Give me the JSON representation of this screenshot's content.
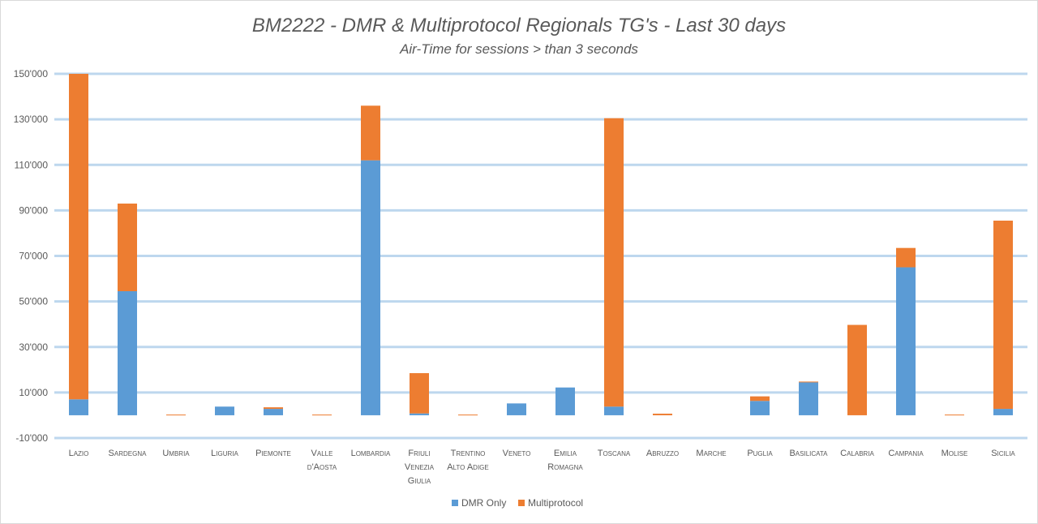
{
  "chart_data": {
    "type": "bar",
    "stacked": true,
    "title": "BM2222 - DMR & Multiprotocol Regionals TG's - Last 30 days",
    "subtitle": "Air-Time for sessions > than 3 seconds",
    "categories": [
      "Lazio",
      "Sardegna",
      "Umbria",
      "Liguria",
      "Piemonte",
      "Valle d'Aosta",
      "Lombardia",
      "Friuli Venezia Giulia",
      "Trentino Alto Adige",
      "Veneto",
      "Emilia Romagna",
      "Toscana",
      "Abruzzo",
      "Marche",
      "Puglia",
      "Basilicata",
      "Calabria",
      "Campania",
      "Molise",
      "Sicilia"
    ],
    "category_label_lines": [
      [
        "Lazio"
      ],
      [
        "Sardegna"
      ],
      [
        "Umbria"
      ],
      [
        "Liguria"
      ],
      [
        "Piemonte"
      ],
      [
        "Valle",
        "d'Aosta"
      ],
      [
        "Lombardia"
      ],
      [
        "Friuli",
        "Venezia",
        "Giulia"
      ],
      [
        "Trentino",
        "Alto Adige"
      ],
      [
        "Veneto"
      ],
      [
        "Emilia",
        "Romagna"
      ],
      [
        "Toscana"
      ],
      [
        "Abruzzo"
      ],
      [
        "Marche"
      ],
      [
        "Puglia"
      ],
      [
        "Basilicata"
      ],
      [
        "Calabria"
      ],
      [
        "Campania"
      ],
      [
        "Molise"
      ],
      [
        "Sicilia"
      ]
    ],
    "series": [
      {
        "name": "DMR Only",
        "color": "#5B9BD5",
        "values": [
          7000,
          54500,
          0,
          3800,
          2800,
          0,
          112000,
          800,
          0,
          5200,
          12200,
          3800,
          0,
          0,
          6300,
          14500,
          0,
          65000,
          0,
          2800
        ]
      },
      {
        "name": "Multiprotocol",
        "color": "#ED7D31",
        "values": [
          143000,
          38500,
          300,
          0,
          700,
          300,
          24000,
          17700,
          300,
          0,
          0,
          126700,
          700,
          0,
          2000,
          300,
          39700,
          8500,
          300,
          82700
        ]
      }
    ],
    "y_ticks": [
      {
        "value": -10000,
        "label": "-10'000"
      },
      {
        "value": 10000,
        "label": "10'000"
      },
      {
        "value": 30000,
        "label": "30'000"
      },
      {
        "value": 50000,
        "label": "50'000"
      },
      {
        "value": 70000,
        "label": "70'000"
      },
      {
        "value": 90000,
        "label": "90'000"
      },
      {
        "value": 110000,
        "label": "110'000"
      },
      {
        "value": 130000,
        "label": "130'000"
      },
      {
        "value": 150000,
        "label": "150'000"
      }
    ],
    "ylim": [
      -10000,
      150000
    ],
    "grid": true,
    "grid_color": "#BDD7EE",
    "legend": "bottom"
  }
}
